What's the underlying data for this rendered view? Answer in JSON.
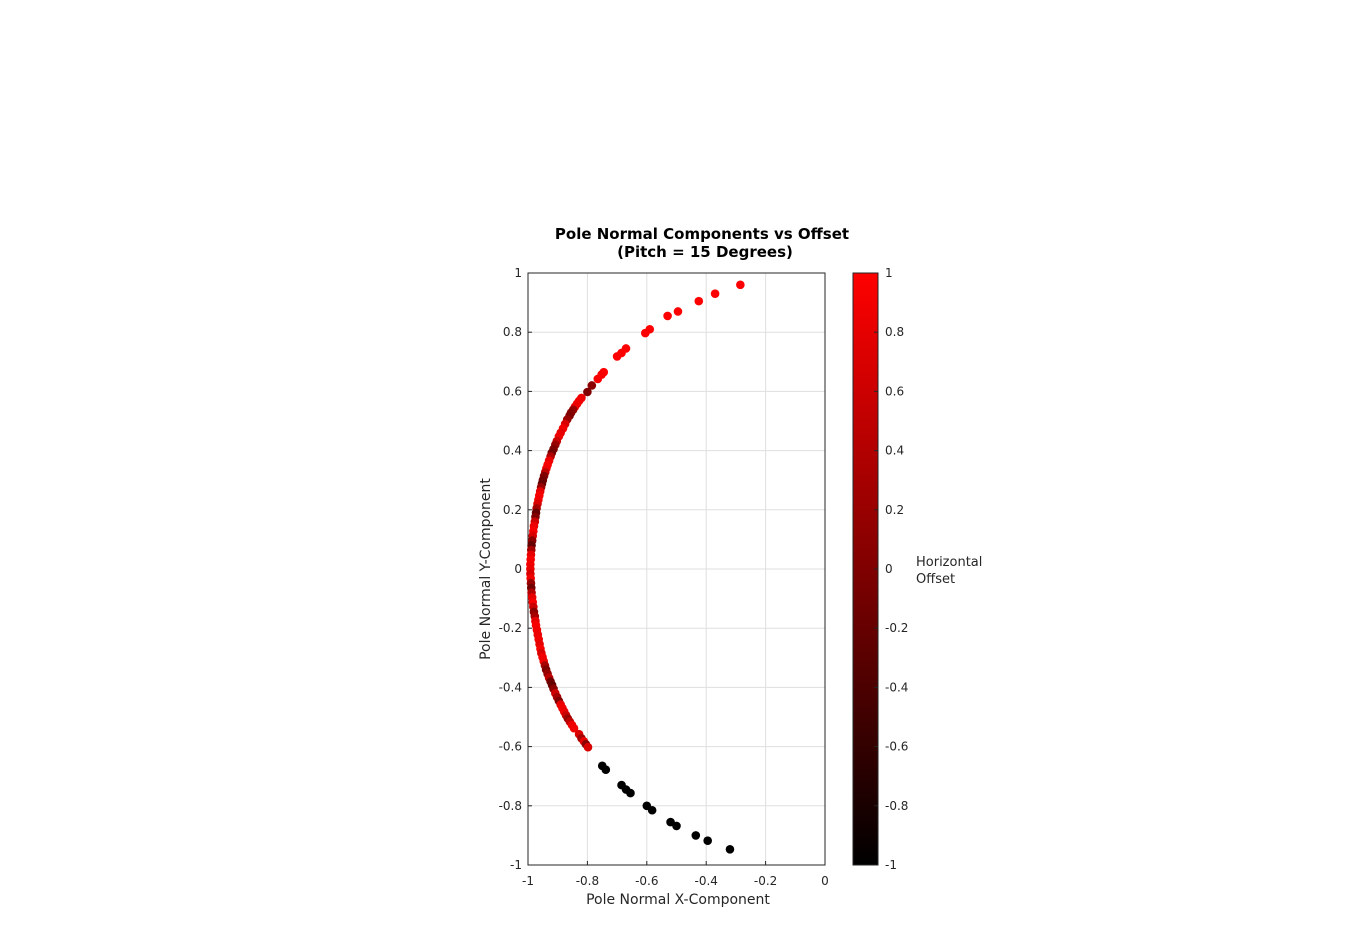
{
  "chart_data": {
    "type": "scatter",
    "title": "Pole Normal Components vs Offset",
    "subtitle": "(Pitch = 15 Degrees)",
    "xlabel": "Pole Normal X-Component",
    "ylabel": "Pole Normal Y-Component",
    "xlim": [
      -1,
      0
    ],
    "ylim": [
      -1,
      1
    ],
    "xticks": [
      "-1",
      "-0.8",
      "-0.6",
      "-0.4",
      "-0.2",
      "0"
    ],
    "yticks": [
      "-1",
      "-0.8",
      "-0.6",
      "-0.4",
      "-0.2",
      "0",
      "0.2",
      "0.4",
      "0.6",
      "0.8",
      "1"
    ],
    "grid": true,
    "colorbar": {
      "label": [
        "Horizontal",
        "Offset"
      ],
      "range": [
        -1,
        1
      ],
      "ticks": [
        "1",
        "0.8",
        "0.6",
        "0.4",
        "0.2",
        "0",
        "-0.2",
        "-0.4",
        "-0.6",
        "-0.8",
        "-1"
      ],
      "color_low": "#000000",
      "color_high": "#ff0000"
    },
    "points": [
      {
        "x": -0.285,
        "y": 0.96,
        "c": 1.0
      },
      {
        "x": -0.37,
        "y": 0.93,
        "c": 1.0
      },
      {
        "x": -0.425,
        "y": 0.905,
        "c": 1.0
      },
      {
        "x": -0.495,
        "y": 0.87,
        "c": 1.0
      },
      {
        "x": -0.53,
        "y": 0.855,
        "c": 1.0
      },
      {
        "x": -0.59,
        "y": 0.81,
        "c": 1.0
      },
      {
        "x": -0.605,
        "y": 0.797,
        "c": 1.0
      },
      {
        "x": -0.67,
        "y": 0.745,
        "c": 1.0
      },
      {
        "x": -0.685,
        "y": 0.73,
        "c": 1.0
      },
      {
        "x": -0.7,
        "y": 0.718,
        "c": 1.0
      },
      {
        "x": -0.745,
        "y": 0.665,
        "c": 1.0
      },
      {
        "x": -0.752,
        "y": 0.657,
        "c": 0.95
      },
      {
        "x": -0.765,
        "y": 0.642,
        "c": 0.95
      },
      {
        "x": -0.785,
        "y": 0.62,
        "c": 0.1
      },
      {
        "x": -0.8,
        "y": 0.598,
        "c": 0.0
      },
      {
        "x": -0.82,
        "y": 0.578,
        "c": 0.85
      },
      {
        "x": -0.828,
        "y": 0.568,
        "c": 0.9
      },
      {
        "x": -0.835,
        "y": 0.558,
        "c": 0.9
      },
      {
        "x": -0.842,
        "y": 0.548,
        "c": 0.85
      },
      {
        "x": -0.848,
        "y": 0.538,
        "c": 0.2
      },
      {
        "x": -0.855,
        "y": 0.528,
        "c": 0.05
      },
      {
        "x": -0.86,
        "y": 0.518,
        "c": 0.0
      },
      {
        "x": -0.868,
        "y": 0.505,
        "c": 0.2
      },
      {
        "x": -0.875,
        "y": 0.49,
        "c": 0.7
      },
      {
        "x": -0.882,
        "y": 0.475,
        "c": 0.9
      },
      {
        "x": -0.89,
        "y": 0.46,
        "c": 0.8
      },
      {
        "x": -0.896,
        "y": 0.448,
        "c": 0.85
      },
      {
        "x": -0.903,
        "y": 0.432,
        "c": 0.6
      },
      {
        "x": -0.908,
        "y": 0.42,
        "c": 0.2
      },
      {
        "x": -0.914,
        "y": 0.405,
        "c": 0.0
      },
      {
        "x": -0.92,
        "y": 0.392,
        "c": -0.1
      },
      {
        "x": -0.924,
        "y": 0.38,
        "c": 0.4
      },
      {
        "x": -0.929,
        "y": 0.366,
        "c": 0.85
      },
      {
        "x": -0.934,
        "y": 0.352,
        "c": 0.95
      },
      {
        "x": -0.938,
        "y": 0.34,
        "c": 0.9
      },
      {
        "x": -0.942,
        "y": 0.327,
        "c": 0.5
      },
      {
        "x": -0.946,
        "y": 0.314,
        "c": 0.0
      },
      {
        "x": -0.95,
        "y": 0.3,
        "c": -0.1
      },
      {
        "x": -0.953,
        "y": 0.288,
        "c": -0.2
      },
      {
        "x": -0.956,
        "y": 0.276,
        "c": 0.2
      },
      {
        "x": -0.959,
        "y": 0.262,
        "c": 0.8
      },
      {
        "x": -0.962,
        "y": 0.248,
        "c": 0.95
      },
      {
        "x": -0.965,
        "y": 0.234,
        "c": 0.9
      },
      {
        "x": -0.968,
        "y": 0.22,
        "c": 0.7
      },
      {
        "x": -0.971,
        "y": 0.205,
        "c": 0.3
      },
      {
        "x": -0.973,
        "y": 0.19,
        "c": -0.2
      },
      {
        "x": -0.975,
        "y": 0.176,
        "c": 0.0
      },
      {
        "x": -0.977,
        "y": 0.16,
        "c": 0.6
      },
      {
        "x": -0.98,
        "y": 0.145,
        "c": 0.85
      },
      {
        "x": -0.982,
        "y": 0.128,
        "c": 0.95
      },
      {
        "x": -0.984,
        "y": 0.112,
        "c": 0.7
      },
      {
        "x": -0.986,
        "y": 0.096,
        "c": 0.1
      },
      {
        "x": -0.988,
        "y": 0.08,
        "c": -0.2
      },
      {
        "x": -0.989,
        "y": 0.064,
        "c": 0.3
      },
      {
        "x": -0.99,
        "y": 0.048,
        "c": 0.8
      },
      {
        "x": -0.991,
        "y": 0.032,
        "c": 0.95
      },
      {
        "x": -0.992,
        "y": 0.016,
        "c": 0.9
      },
      {
        "x": -0.992,
        "y": 0.0,
        "c": 0.85
      },
      {
        "x": -0.992,
        "y": -0.016,
        "c": 0.7
      },
      {
        "x": -0.991,
        "y": -0.032,
        "c": 0.9
      },
      {
        "x": -0.99,
        "y": -0.048,
        "c": 0.2
      },
      {
        "x": -0.989,
        "y": -0.064,
        "c": -0.1
      },
      {
        "x": -0.988,
        "y": -0.08,
        "c": 0.4
      },
      {
        "x": -0.986,
        "y": -0.096,
        "c": 0.8
      },
      {
        "x": -0.984,
        "y": -0.112,
        "c": 0.95
      },
      {
        "x": -0.982,
        "y": -0.128,
        "c": 0.6
      },
      {
        "x": -0.98,
        "y": -0.145,
        "c": 0.1
      },
      {
        "x": -0.977,
        "y": -0.16,
        "c": 0.3
      },
      {
        "x": -0.975,
        "y": -0.176,
        "c": 0.8
      },
      {
        "x": -0.973,
        "y": -0.19,
        "c": 0.95
      },
      {
        "x": -0.97,
        "y": -0.206,
        "c": 0.9
      },
      {
        "x": -0.967,
        "y": -0.222,
        "c": 0.85
      },
      {
        "x": -0.964,
        "y": -0.238,
        "c": 0.9
      },
      {
        "x": -0.961,
        "y": -0.254,
        "c": 0.8
      },
      {
        "x": -0.958,
        "y": -0.27,
        "c": 0.95
      },
      {
        "x": -0.955,
        "y": -0.284,
        "c": 0.7
      },
      {
        "x": -0.951,
        "y": -0.298,
        "c": 0.9
      },
      {
        "x": -0.947,
        "y": -0.312,
        "c": 0.85
      },
      {
        "x": -0.943,
        "y": -0.326,
        "c": 0.3
      },
      {
        "x": -0.939,
        "y": -0.34,
        "c": 0.0
      },
      {
        "x": -0.934,
        "y": -0.354,
        "c": 0.2
      },
      {
        "x": -0.929,
        "y": -0.368,
        "c": 0.5
      },
      {
        "x": -0.924,
        "y": -0.38,
        "c": -0.1
      },
      {
        "x": -0.919,
        "y": -0.392,
        "c": -0.2
      },
      {
        "x": -0.914,
        "y": -0.405,
        "c": 0.1
      },
      {
        "x": -0.908,
        "y": -0.42,
        "c": 0.6
      },
      {
        "x": -0.902,
        "y": -0.433,
        "c": 0.3
      },
      {
        "x": -0.896,
        "y": -0.446,
        "c": 0.0
      },
      {
        "x": -0.89,
        "y": -0.458,
        "c": 0.8
      },
      {
        "x": -0.884,
        "y": -0.47,
        "c": 0.9
      },
      {
        "x": -0.878,
        "y": -0.482,
        "c": 0.85
      },
      {
        "x": -0.872,
        "y": -0.494,
        "c": 0.6
      },
      {
        "x": -0.866,
        "y": -0.505,
        "c": 0.2
      },
      {
        "x": -0.859,
        "y": -0.516,
        "c": 0.5
      },
      {
        "x": -0.852,
        "y": -0.527,
        "c": 0.85
      },
      {
        "x": -0.845,
        "y": -0.538,
        "c": 0.9
      },
      {
        "x": -0.828,
        "y": -0.558,
        "c": 0.7
      },
      {
        "x": -0.82,
        "y": -0.572,
        "c": 0.3
      },
      {
        "x": -0.812,
        "y": -0.582,
        "c": 0.8
      },
      {
        "x": -0.805,
        "y": -0.592,
        "c": 0.1
      },
      {
        "x": -0.798,
        "y": -0.602,
        "c": 0.7
      },
      {
        "x": -0.75,
        "y": -0.665,
        "c": -1.0
      },
      {
        "x": -0.738,
        "y": -0.678,
        "c": -1.0
      },
      {
        "x": -0.685,
        "y": -0.73,
        "c": -1.0
      },
      {
        "x": -0.67,
        "y": -0.745,
        "c": -1.0
      },
      {
        "x": -0.655,
        "y": -0.757,
        "c": -1.0
      },
      {
        "x": -0.6,
        "y": -0.8,
        "c": -1.0
      },
      {
        "x": -0.582,
        "y": -0.815,
        "c": -1.0
      },
      {
        "x": -0.52,
        "y": -0.855,
        "c": -1.0
      },
      {
        "x": -0.5,
        "y": -0.868,
        "c": -1.0
      },
      {
        "x": -0.435,
        "y": -0.9,
        "c": -1.0
      },
      {
        "x": -0.395,
        "y": -0.918,
        "c": -1.0
      },
      {
        "x": -0.32,
        "y": -0.947,
        "c": -1.0
      }
    ]
  }
}
